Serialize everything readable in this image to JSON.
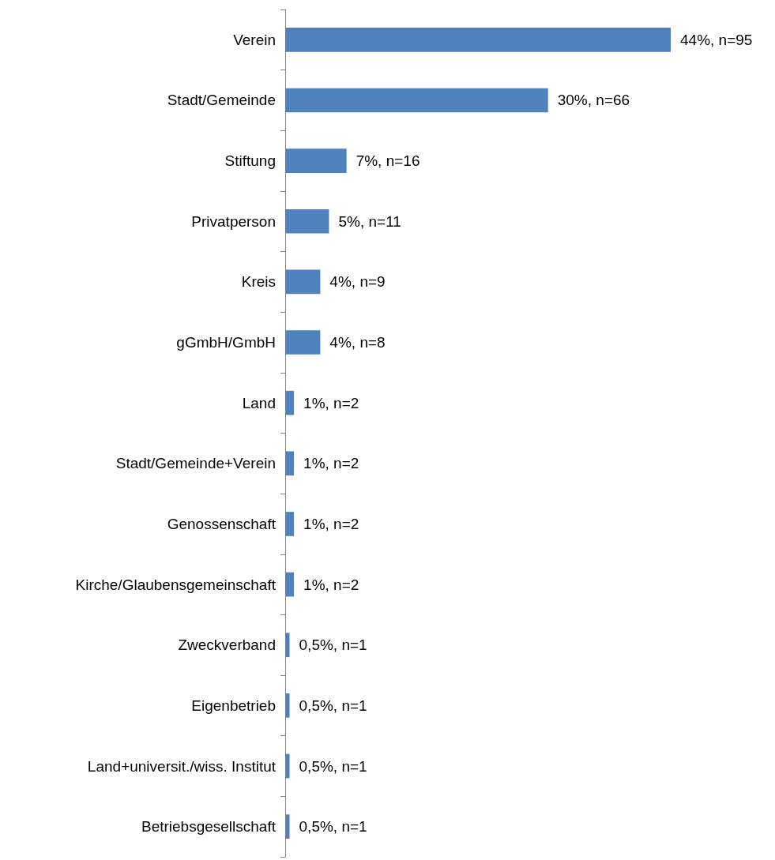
{
  "chart_data": {
    "type": "bar",
    "orientation": "horizontal",
    "categories": [
      "Verein",
      "Stadt/Gemeinde",
      "Stiftung",
      "Privatperson",
      "Kreis",
      "gGmbH/GmbH",
      "Land",
      "Stadt/Gemeinde+Verein",
      "Genossenschaft",
      "Kirche/Glaubensgemeinschaft",
      "Zweckverband",
      "Eigenbetrieb",
      "Land+universit./wiss. Institut",
      "Betriebsgesellschaft"
    ],
    "values": [
      44,
      30,
      7,
      5,
      4,
      4,
      1,
      1,
      1,
      1,
      0.5,
      0.5,
      0.5,
      0.5
    ],
    "value_labels": [
      "44%, n=95",
      "30%, n=66",
      "7%, n=16",
      "5%, n=11",
      "4%, n=9",
      "4%, n=8",
      "1%, n=2",
      "1%, n=2",
      "1%, n=2",
      "1%, n=2",
      "0,5%, n=1",
      "0,5%, n=1",
      "0,5%, n=1",
      "0,5%, n=1"
    ],
    "color": "#4f81bd"
  }
}
